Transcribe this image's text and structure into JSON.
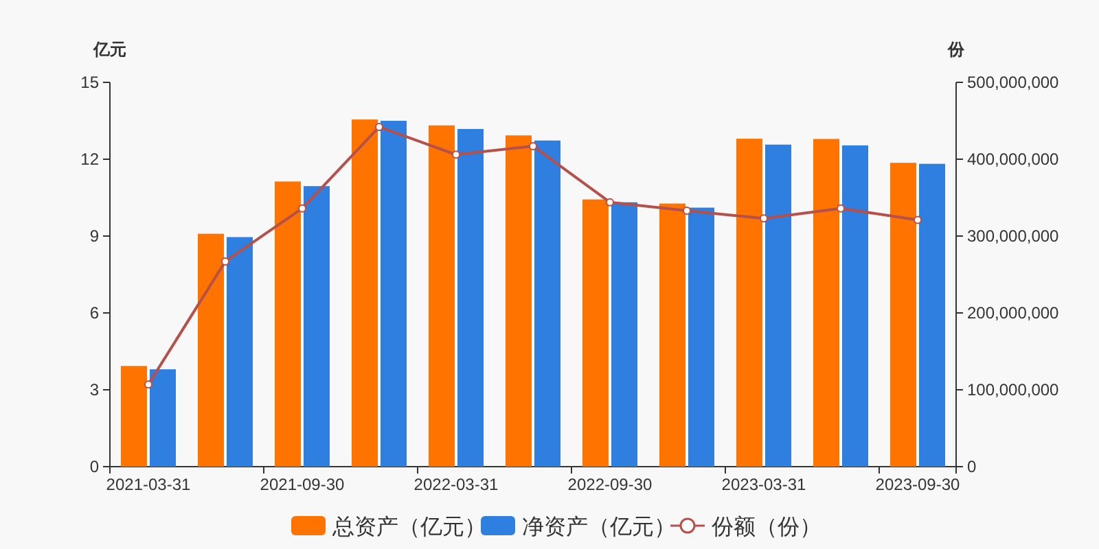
{
  "chart_data": {
    "type": "bar",
    "ylabel": "亿元",
    "y2label": "份",
    "categories": [
      "2021-03-31",
      null,
      "2021-09-30",
      null,
      "2022-03-31",
      null,
      "2022-09-30",
      null,
      "2023-03-31",
      null,
      "2023-09-30"
    ],
    "series": [
      {
        "name": "总资产（亿元）",
        "color": "#ff7300",
        "values": [
          3.93,
          9.09,
          11.13,
          13.55,
          13.32,
          12.93,
          10.43,
          10.27,
          12.8,
          12.79,
          11.86
        ]
      },
      {
        "name": "净资产（亿元）",
        "color": "#2e7fdf",
        "values": [
          3.8,
          8.96,
          10.95,
          13.5,
          13.18,
          12.73,
          10.32,
          10.11,
          12.57,
          12.54,
          11.82
        ]
      },
      {
        "name": "份额（份）",
        "type": "line",
        "axis": "y2",
        "color": "#b5504a",
        "marker": "circle",
        "values": [
          107000000,
          267000000,
          336000000,
          442000000,
          406000000,
          417000000,
          344000000,
          333000000,
          323000000,
          336000000,
          321000000
        ]
      }
    ],
    "ylim": [
      0,
      15
    ],
    "yticks": [
      0,
      3,
      6,
      9,
      12,
      15
    ],
    "y2lim": [
      0,
      500000000
    ],
    "y2ticks": [
      0,
      {
        "value": 100000000,
        "label": "100,000,000"
      },
      {
        "value": 200000000,
        "label": "200,000,000"
      },
      {
        "value": 300000000,
        "label": "300,000,000"
      },
      {
        "value": 400000000,
        "label": "400,000,000"
      },
      {
        "value": 500000000,
        "label": "500,000,000"
      }
    ],
    "grid": false,
    "legend": "bottom"
  }
}
